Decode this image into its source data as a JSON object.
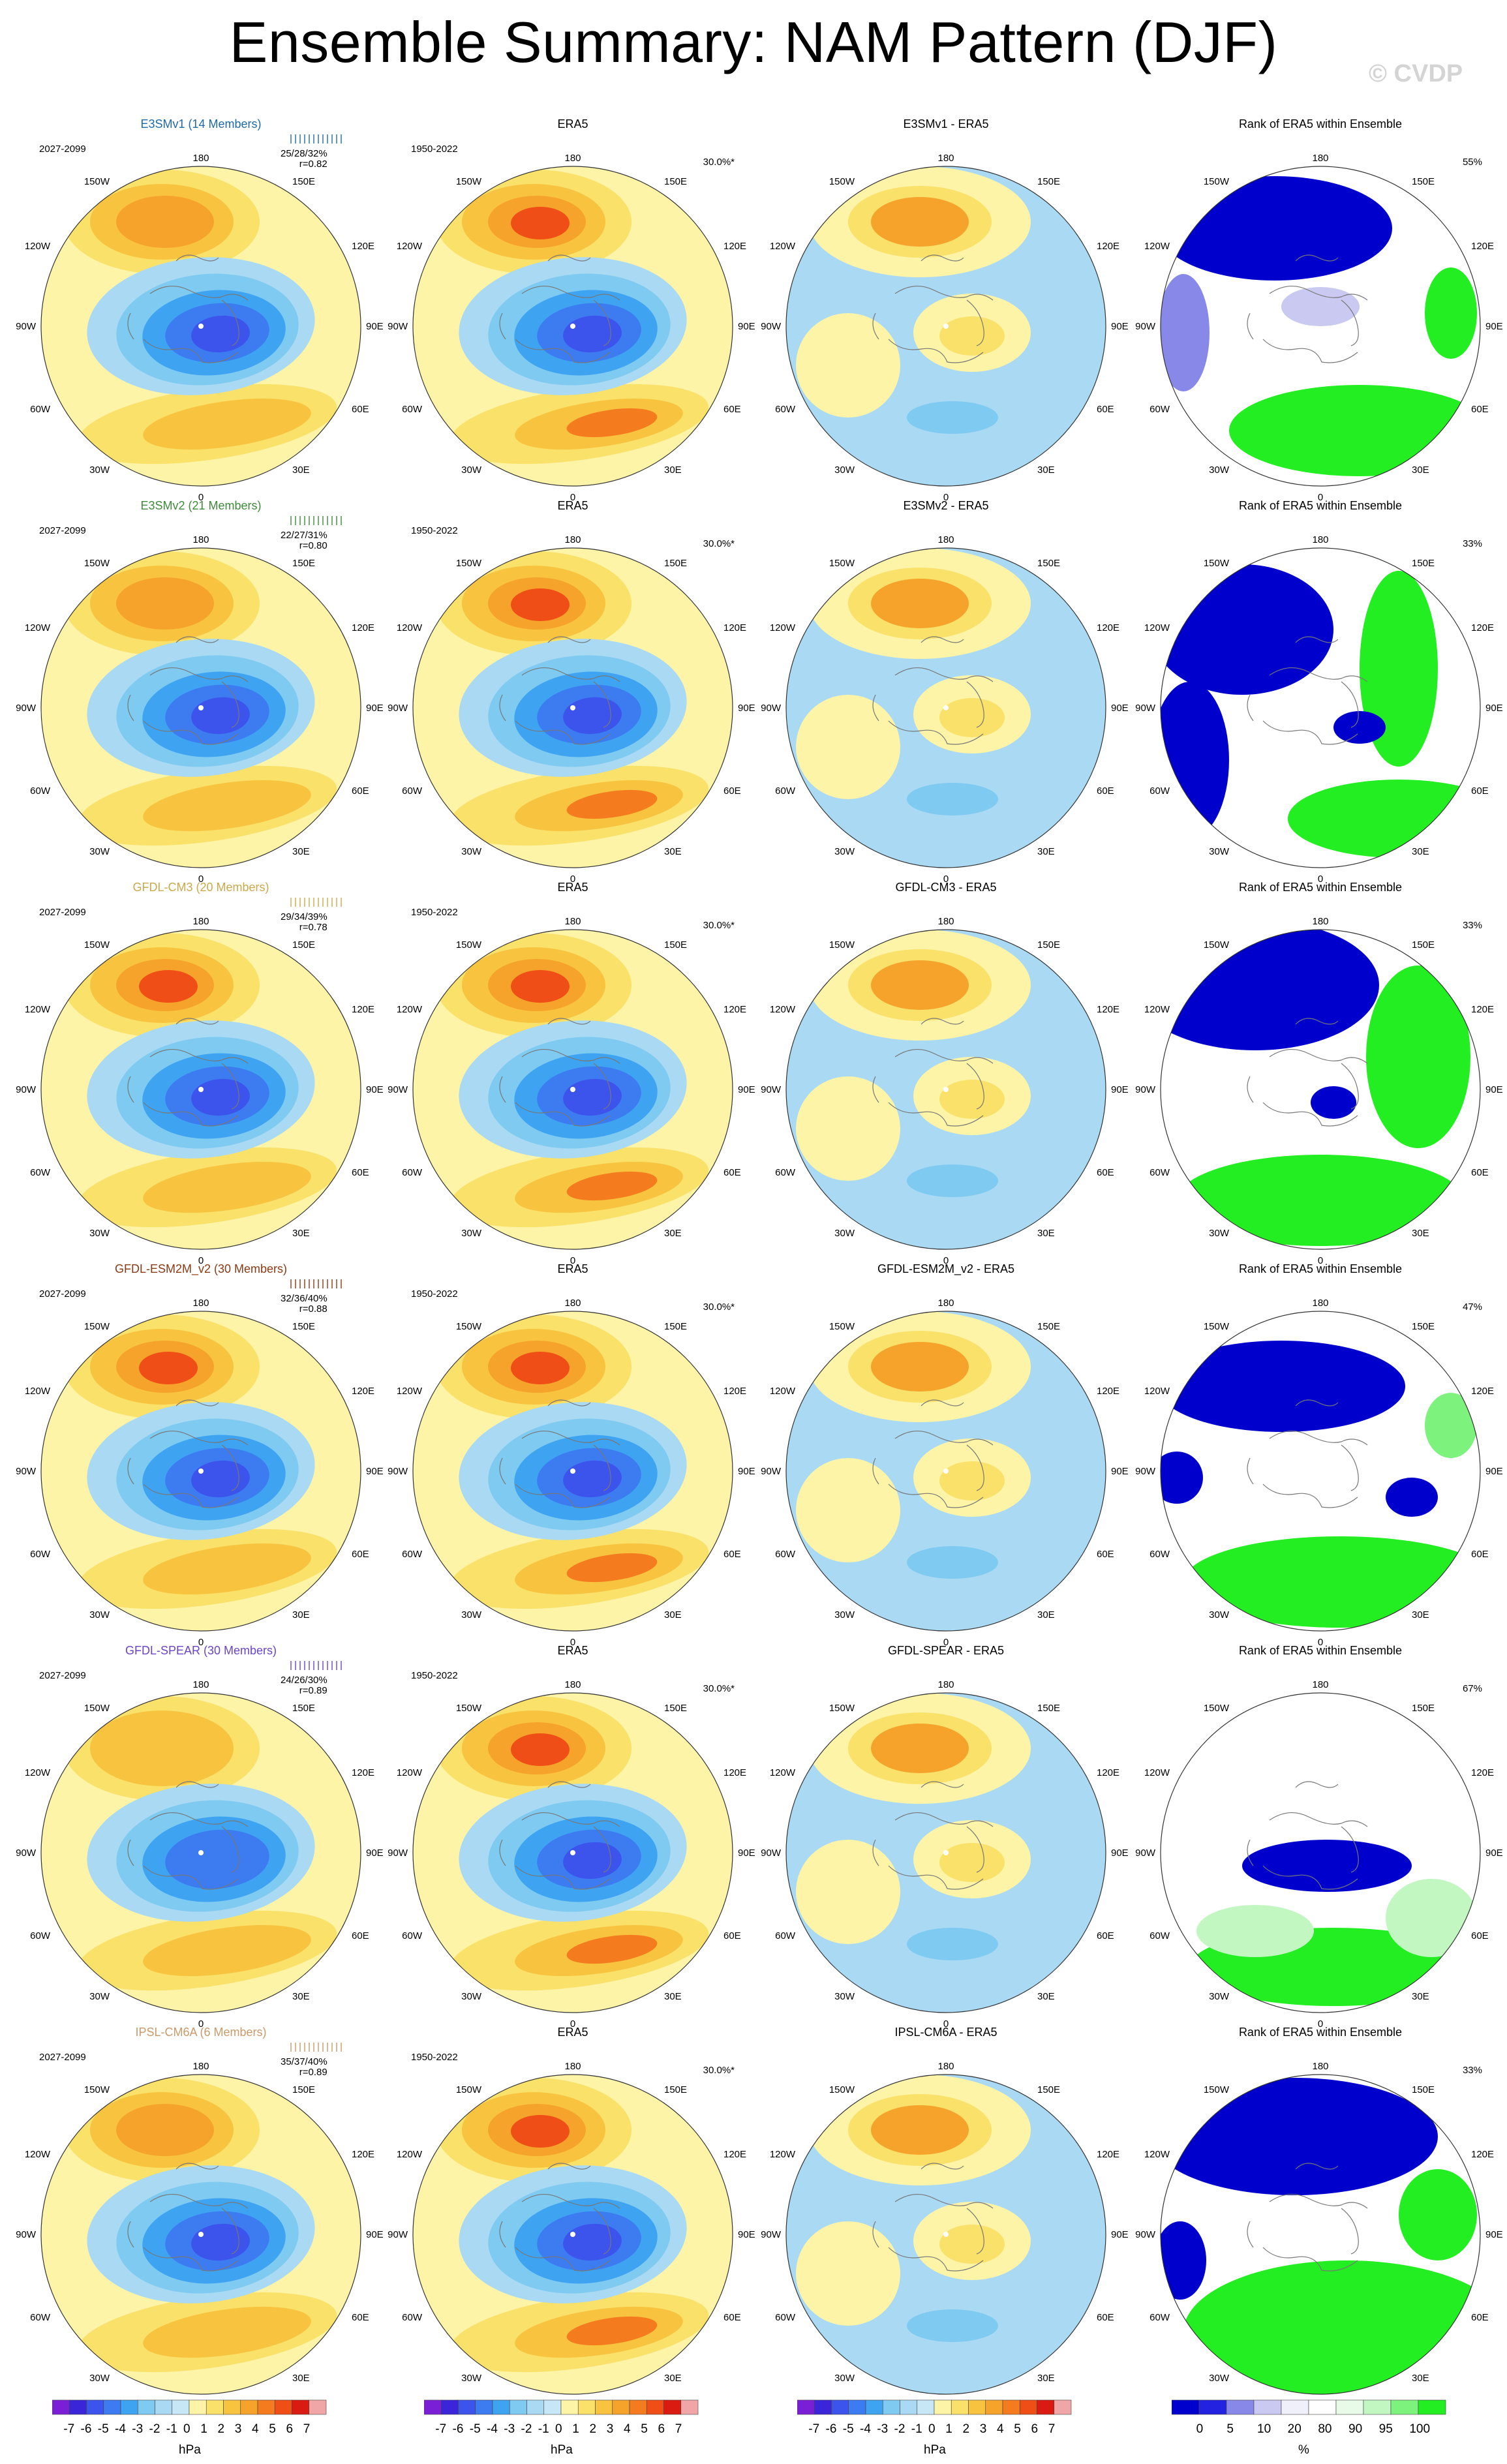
{
  "title": "Ensemble Summary: NAM Pattern (DJF)",
  "copyright": "© CVDP",
  "colors": {
    "pattern_levels": [
      "#7a1fd6",
      "#3b25d8",
      "#3c54ec",
      "#3d7cf0",
      "#3ea4f2",
      "#7fcaf0",
      "#a9d9f3",
      "#c7e7f6",
      "#fdf4a8",
      "#f9e16a",
      "#f8c440",
      "#f6a32b",
      "#f47c1e",
      "#ef4f16",
      "#d91b12",
      "#f0a6a6"
    ],
    "rank_levels": [
      "#0000cc",
      "#2222e0",
      "#8888e8",
      "#c9c9f2",
      "#f0f0fb",
      "#ffffff",
      "#e8fbe8",
      "#c2f7c2",
      "#7df27d",
      "#22ee22"
    ]
  },
  "rows": [
    {
      "model": "E3SMv1 (14 Members)",
      "model_color": "#1f6aa8",
      "years": "2027-2099",
      "stats": "25/28/32%",
      "r": "r=0.82",
      "diff_title": "E3SMv1 - ERA5",
      "rank_pct": "55%"
    },
    {
      "model": "E3SMv2 (21 Members)",
      "model_color": "#3f8a3a",
      "years": "2027-2099",
      "stats": "22/27/31%",
      "r": "r=0.80",
      "diff_title": "E3SMv2 - ERA5",
      "rank_pct": "33%"
    },
    {
      "model": "GFDL-CM3 (20 Members)",
      "model_color": "#c9a94b",
      "years": "2027-2099",
      "stats": "29/34/39%",
      "r": "r=0.78",
      "diff_title": "GFDL-CM3 - ERA5",
      "rank_pct": "33%"
    },
    {
      "model": "GFDL-ESM2M_v2 (30 Members)",
      "model_color": "#8a3a14",
      "years": "2027-2099",
      "stats": "32/36/40%",
      "r": "r=0.88",
      "diff_title": "GFDL-ESM2M_v2 - ERA5",
      "rank_pct": "47%"
    },
    {
      "model": "GFDL-SPEAR (30 Members)",
      "model_color": "#6a45c9",
      "years": "2027-2099",
      "stats": "24/26/30%",
      "r": "r=0.89",
      "diff_title": "GFDL-SPEAR - ERA5",
      "rank_pct": "67%"
    },
    {
      "model": "IPSL-CM6A (6 Members)",
      "model_color": "#c99a6a",
      "years": "2027-2099",
      "stats": "35/37/40%",
      "r": "r=0.89",
      "diff_title": "IPSL-CM6A - ERA5",
      "rank_pct": "33%"
    }
  ],
  "obs": {
    "title": "ERA5",
    "years": "1950-2022",
    "pct": "30.0%*"
  },
  "rank_title": "Rank of ERA5 within Ensemble",
  "map_labels": {
    "top": "180",
    "bottom": "0",
    "left": "90W",
    "right": "90E",
    "ul1": "150W",
    "ul2": "120W",
    "ur1": "150E",
    "ur2": "120E",
    "ll1": "60W",
    "ll2": "30W",
    "lr1": "60E",
    "lr2": "30E"
  },
  "colorbar_pattern": {
    "labels": [
      "-7",
      "-6",
      "-5",
      "-4",
      "-3",
      "-2",
      "-1",
      "0",
      "1",
      "2",
      "3",
      "4",
      "5",
      "6",
      "7"
    ],
    "units": "hPa"
  },
  "colorbar_rank": {
    "labels": [
      "0",
      "5",
      "10",
      "20",
      "80",
      "90",
      "95",
      "100"
    ],
    "units": "%"
  },
  "chart_data": {
    "type": "heatmap",
    "description_rows": 6,
    "columns": [
      "model pattern",
      "ERA5",
      "model - ERA5",
      "Rank of ERA5 within Ensemble"
    ],
    "pattern_units": "hPa",
    "pattern_levels": [
      -7,
      -6,
      -5,
      -4,
      -3,
      -2,
      -1,
      0,
      1,
      2,
      3,
      4,
      5,
      6,
      7
    ],
    "rank_units": "%",
    "rank_levels": [
      0,
      5,
      10,
      20,
      80,
      90,
      95,
      100
    ],
    "pattern_correlation": [
      0.82,
      0.8,
      0.78,
      0.88,
      0.89,
      0.89
    ],
    "pct_variance_explained": [
      "25/28/32%",
      "22/27/31%",
      "29/34/39%",
      "32/36/40%",
      "24/26/30%",
      "35/37/40%"
    ],
    "era5_pct_variance": "30.0%*",
    "rank_pct": [
      "55%",
      "33%",
      "33%",
      "47%",
      "67%",
      "33%"
    ]
  }
}
